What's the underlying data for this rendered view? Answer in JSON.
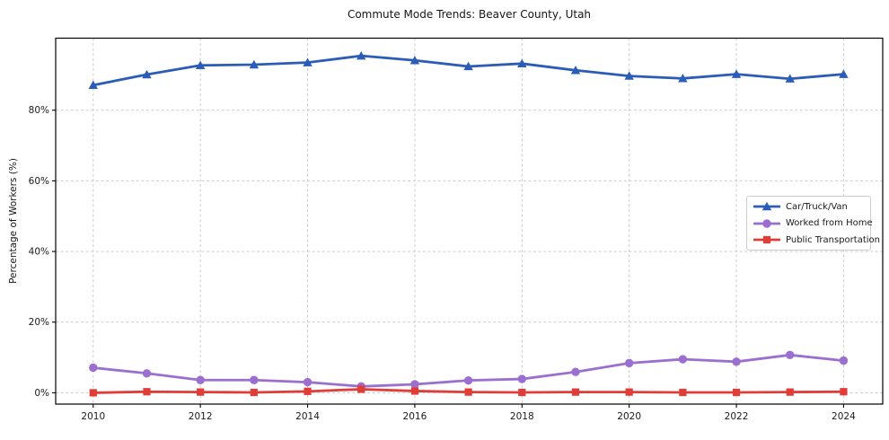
{
  "chart_data": {
    "type": "line",
    "title": "Commute Mode Trends: Beaver County, Utah",
    "xlabel": "",
    "ylabel": "Percentage of Workers (%)",
    "grid": true,
    "legend_position": "center-right",
    "xlim": [
      2009.3,
      2024.73
    ],
    "ylim": [
      -3.2,
      100.4
    ],
    "x": [
      2010,
      2011,
      2012,
      2013,
      2014,
      2015,
      2016,
      2017,
      2018,
      2019,
      2020,
      2021,
      2022,
      2023,
      2024
    ],
    "xticks": [
      2010,
      2012,
      2014,
      2016,
      2018,
      2020,
      2022,
      2024
    ],
    "xtick_labels": [
      "2010",
      "2012",
      "2014",
      "2016",
      "2018",
      "2020",
      "2022",
      "2024"
    ],
    "yticks": [
      0,
      20,
      40,
      60,
      80
    ],
    "ytick_labels": [
      "0%",
      "20%",
      "40%",
      "60%",
      "80%"
    ],
    "series": [
      {
        "name": "Car/Truck/Van",
        "color": "#2b5cb8",
        "marker": "triangle",
        "values": [
          87.1,
          90.1,
          92.7,
          92.9,
          93.5,
          95.4,
          94.1,
          92.4,
          93.2,
          91.3,
          89.7,
          89.0,
          90.2,
          88.9,
          90.2
        ]
      },
      {
        "name": "Worked from Home",
        "color": "#9b6fd0",
        "marker": "circle",
        "values": [
          7.1,
          5.5,
          3.6,
          3.6,
          3.0,
          1.8,
          2.4,
          3.5,
          3.9,
          5.9,
          8.4,
          9.5,
          8.8,
          10.7,
          9.1
        ]
      },
      {
        "name": "Public Transportation",
        "color": "#e03c38",
        "marker": "square",
        "values": [
          0.0,
          0.3,
          0.2,
          0.1,
          0.4,
          1.0,
          0.5,
          0.2,
          0.1,
          0.2,
          0.2,
          0.1,
          0.1,
          0.2,
          0.3
        ]
      }
    ]
  }
}
